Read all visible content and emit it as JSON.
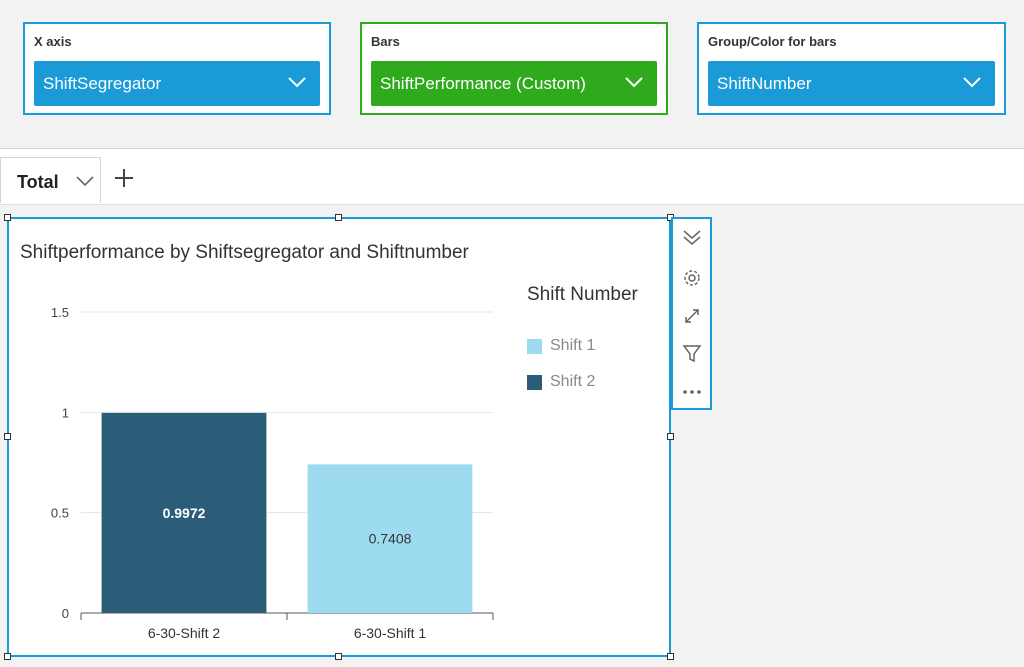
{
  "field_wells": [
    {
      "label": "X axis",
      "field": "ShiftSegregator"
    },
    {
      "label": "Bars",
      "field": "ShiftPerformance (Custom)"
    },
    {
      "label": "Group/Color for bars",
      "field": "ShiftNumber"
    }
  ],
  "tabs": [
    {
      "label": "Total"
    }
  ],
  "visual": {
    "title": "Shiftperformance by Shiftsegregator and Shiftnumber",
    "toolbar_icons": [
      "collapse-icon",
      "gear-icon",
      "expand-icon",
      "filter-icon",
      "more-icon"
    ]
  },
  "chart_data": {
    "type": "bar",
    "categories": [
      "6-30-Shift 2",
      "6-30-Shift 1"
    ],
    "series": [
      {
        "name": "Shift 2",
        "color": "#2b5d78",
        "label_color": "#ffffff",
        "values": [
          0.9972,
          null
        ]
      },
      {
        "name": "Shift 1",
        "color": "#9ddcf0",
        "label_color": "#333333",
        "values": [
          null,
          0.7408
        ]
      }
    ],
    "data_labels": [
      "0.9972",
      "0.7408"
    ],
    "ylim": [
      0,
      1.5
    ],
    "yticks": [
      "0",
      "0.5",
      "1",
      "1.5"
    ],
    "grid": true,
    "legend": {
      "title": "Shift Number",
      "items": [
        "Shift 1",
        "Shift 2"
      ],
      "colors": [
        "#9ddcf0",
        "#2b5d78"
      ],
      "position": "right"
    }
  },
  "colors": {
    "accent": "#1a9bd7",
    "bars_well": "#2eaa1c"
  }
}
